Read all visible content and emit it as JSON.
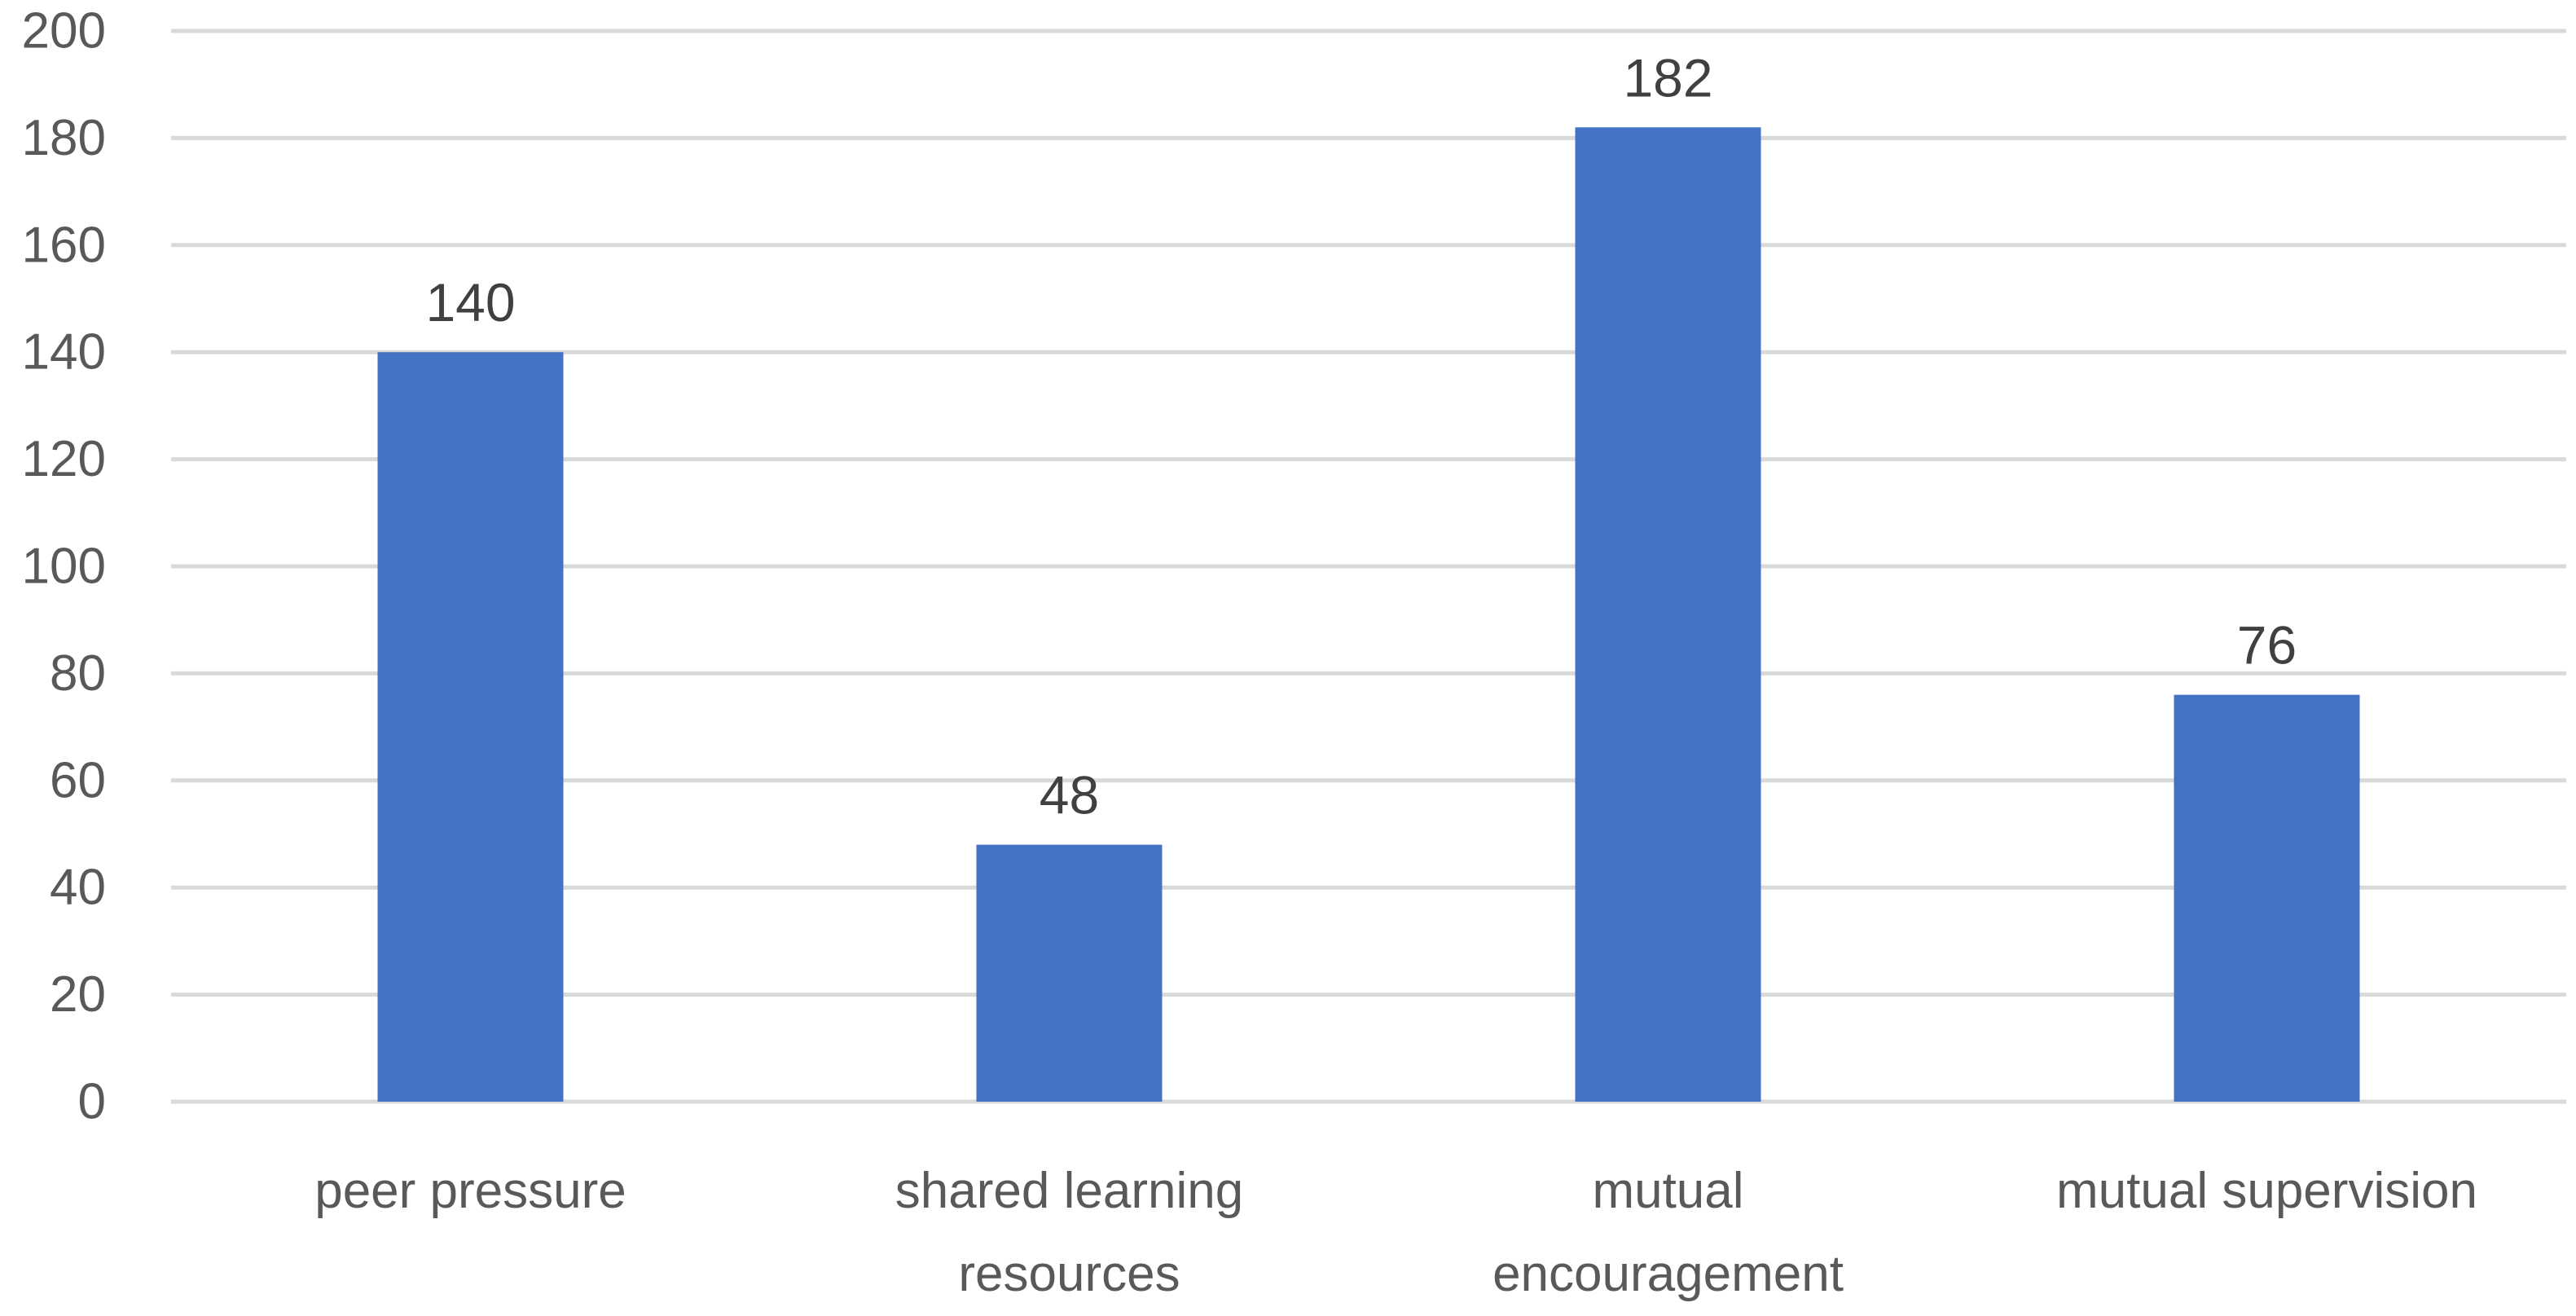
{
  "chart_data": {
    "type": "bar",
    "title": "",
    "xlabel": "",
    "ylabel": "",
    "categories": [
      [
        "peer pressure"
      ],
      [
        "shared learning",
        "resources"
      ],
      [
        "mutual",
        "encouragement"
      ],
      [
        "mutual supervision"
      ]
    ],
    "values": [
      140,
      48,
      182,
      76
    ],
    "data_labels": [
      "140",
      "48",
      "182",
      "76"
    ],
    "ylim": [
      0,
      200
    ],
    "yticks": [
      0,
      20,
      40,
      60,
      80,
      100,
      120,
      140,
      160,
      180,
      200
    ],
    "grid": true,
    "legend": "none",
    "bar_color": "#4472c4"
  }
}
